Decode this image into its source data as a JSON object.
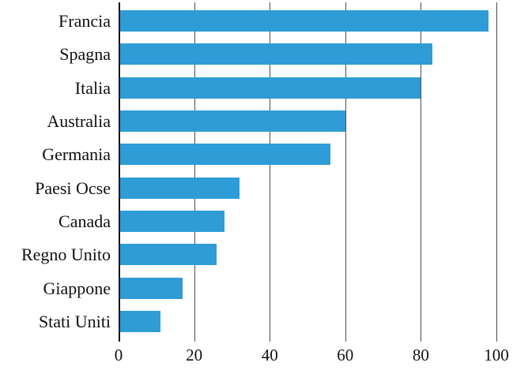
{
  "chart": {
    "background_color": "#ffffff",
    "bar_color": "#2E9CD6",
    "axis_color": "#111111",
    "gridline_color": "#4d4d4d",
    "text_color": "#111111"
  },
  "chart_data": {
    "type": "bar",
    "orientation": "horizontal",
    "title": "",
    "xlabel": "",
    "ylabel": "",
    "categories": [
      "Francia",
      "Spagna",
      "Italia",
      "Australia",
      "Germania",
      "Paesi Ocse",
      "Canada",
      "Regno Unito",
      "Giappone",
      "Stati Uniti"
    ],
    "values": [
      98,
      83,
      80,
      60,
      56,
      32,
      28,
      26,
      17,
      11
    ],
    "x_ticks": [
      0,
      20,
      40,
      60,
      80,
      100
    ],
    "xlim": [
      0,
      100
    ],
    "grid": true,
    "legend_position": "none"
  }
}
